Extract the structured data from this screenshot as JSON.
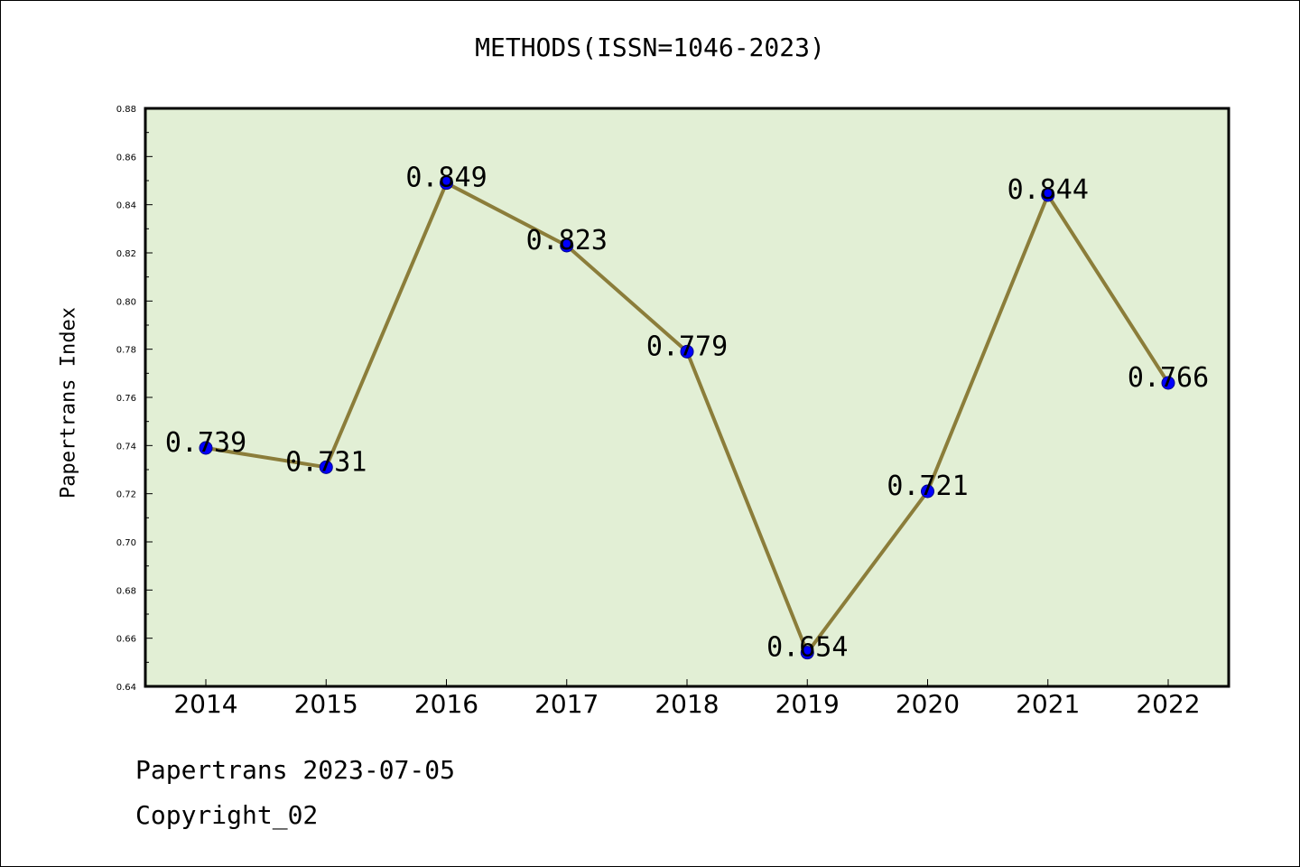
{
  "header": {
    "title": "METHODS(ISSN=1046-2023)"
  },
  "footer": {
    "line1": "Papertrans 2023-07-05",
    "line2": "Copyright_02"
  },
  "chart_data": {
    "type": "line",
    "title": "METHODS(ISSN=1046-2023)",
    "xlabel": "",
    "ylabel": "Papertrans Index",
    "categories": [
      "2014",
      "2015",
      "2016",
      "2017",
      "2018",
      "2019",
      "2020",
      "2021",
      "2022"
    ],
    "values": [
      0.739,
      0.731,
      0.849,
      0.823,
      0.779,
      0.654,
      0.721,
      0.844,
      0.766
    ],
    "data_labels": [
      "0.739",
      "0.731",
      "0.849",
      "0.823",
      "0.779",
      "0.654",
      "0.721",
      "0.844",
      "0.766"
    ],
    "ylim": [
      0.64,
      0.88
    ],
    "yticks": [
      "0.64",
      "0.66",
      "0.68",
      "0.70",
      "0.72",
      "0.74",
      "0.76",
      "0.78",
      "0.80",
      "0.82",
      "0.84",
      "0.86",
      "0.88"
    ],
    "grid": false,
    "colors": {
      "plot_background": "#e2efd5",
      "line": "#8b7d3a",
      "marker": "#0000ff",
      "marker_edge": "#00008b"
    }
  }
}
